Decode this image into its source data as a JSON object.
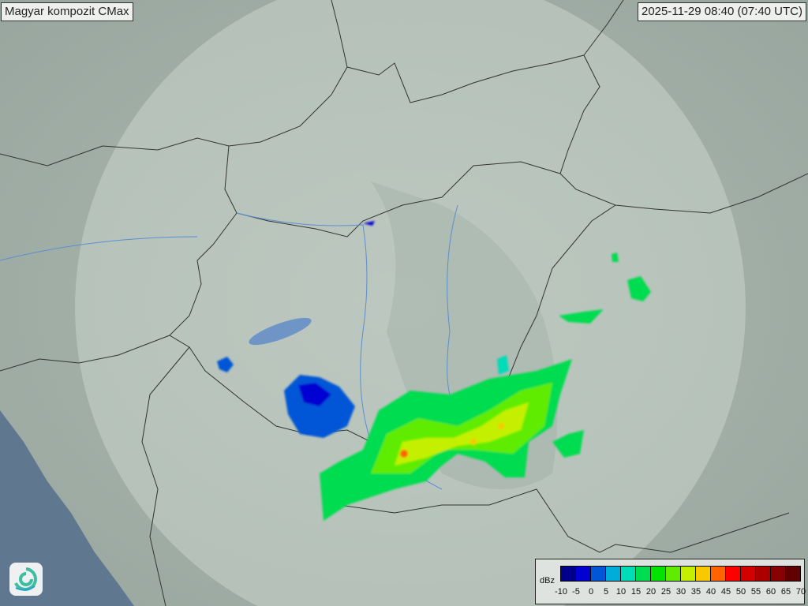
{
  "title": "Magyar kompozit  CMax",
  "timestamp": "2025-11-29 08:40 (07:40 UTC)",
  "logo": {
    "icon": "swirl-logo-icon"
  },
  "legend": {
    "unit": "dBz",
    "ticks": [
      "-10",
      "-5",
      "0",
      "5",
      "10",
      "15",
      "20",
      "25",
      "30",
      "35",
      "40",
      "45",
      "50",
      "55",
      "60",
      "65",
      "70"
    ],
    "colors": [
      "#00008c",
      "#0000d2",
      "#0056d6",
      "#00acd8",
      "#00dcb8",
      "#00dc50",
      "#00e400",
      "#60ec00",
      "#c4f000",
      "#f8c800",
      "#ff6400",
      "#ff0000",
      "#d40000",
      "#ac0000",
      "#880000",
      "#600000"
    ]
  },
  "map_colors": {
    "land": "#a9b6ad",
    "coverage": "#c4d0c6",
    "sea": "#5f7890",
    "border": "#333333",
    "river": "#5a8fd0"
  }
}
